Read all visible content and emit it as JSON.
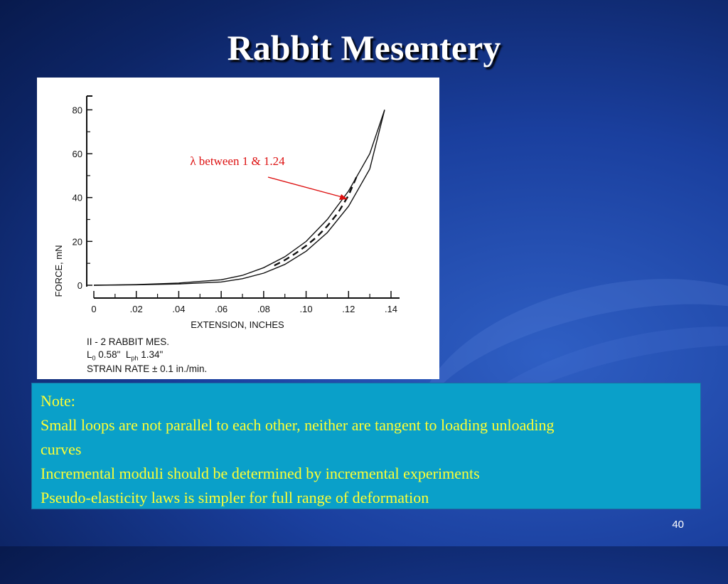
{
  "slide": {
    "title": "Rabbit Mesentery",
    "page_number": "40"
  },
  "figure": {
    "annotation": "λ between 1 & 1.24",
    "caption": {
      "line1": "II - 2 RABBIT MES.",
      "line2_L0": "L",
      "line2_L0_sub": "0",
      "line2_L0_val": "0.58\"",
      "line2_Lph": "L",
      "line2_Lph_sub": "ph",
      "line2_Lph_val": "1.34\"",
      "line3": "STRAIN RATE ± 0.1 in./min."
    }
  },
  "chart_data": {
    "type": "line",
    "xlabel": "EXTENSION, INCHES",
    "ylabel": "FORCE, mN",
    "x_ticks": [
      "0",
      ".02",
      ".04",
      ".06",
      ".08",
      ".10",
      ".12",
      ".14"
    ],
    "x_tick_values": [
      0,
      0.02,
      0.04,
      0.06,
      0.08,
      0.1,
      0.12,
      0.14
    ],
    "y_ticks": [
      "0",
      "20",
      "40",
      "60",
      "80"
    ],
    "y_tick_values": [
      0,
      20,
      40,
      60,
      80
    ],
    "xlim": [
      0,
      0.14
    ],
    "ylim": [
      0,
      85
    ],
    "series": [
      {
        "style": "solid",
        "x": [
          0,
          0.02,
          0.04,
          0.06,
          0.07,
          0.08,
          0.09,
          0.1,
          0.11,
          0.12,
          0.13,
          0.137
        ],
        "y": [
          0,
          0.3,
          1,
          2.5,
          4.5,
          8,
          13,
          20,
          30,
          43,
          60,
          80
        ]
      },
      {
        "style": "solid",
        "x": [
          0,
          0.02,
          0.04,
          0.06,
          0.07,
          0.08,
          0.09,
          0.1,
          0.11,
          0.12,
          0.13,
          0.137
        ],
        "y": [
          0,
          0.2,
          0.6,
          1.5,
          3,
          5.5,
          9.5,
          15.5,
          24,
          36,
          53,
          80
        ]
      },
      {
        "style": "dashed",
        "x": [
          0.085,
          0.09,
          0.095,
          0.1,
          0.105,
          0.11,
          0.115,
          0.12,
          0.124
        ],
        "y": [
          9,
          11.5,
          14.5,
          18,
          22,
          27,
          33,
          41,
          50
        ]
      }
    ],
    "grid": false,
    "colors": {
      "annotation": "#dd1111",
      "curve": "#111111",
      "note_text": "#ffff33",
      "note_bg": "#0aa0c9"
    }
  },
  "notes": {
    "heading": "Note:",
    "line1": "Small loops are not parallel to each other, neither are tangent to loading unloading",
    "line1_cont": "curves",
    "line2": "Incremental moduli should be determined by incremental experiments",
    "line3": "Pseudo-elasticity laws is simpler for full range of  deformation"
  }
}
